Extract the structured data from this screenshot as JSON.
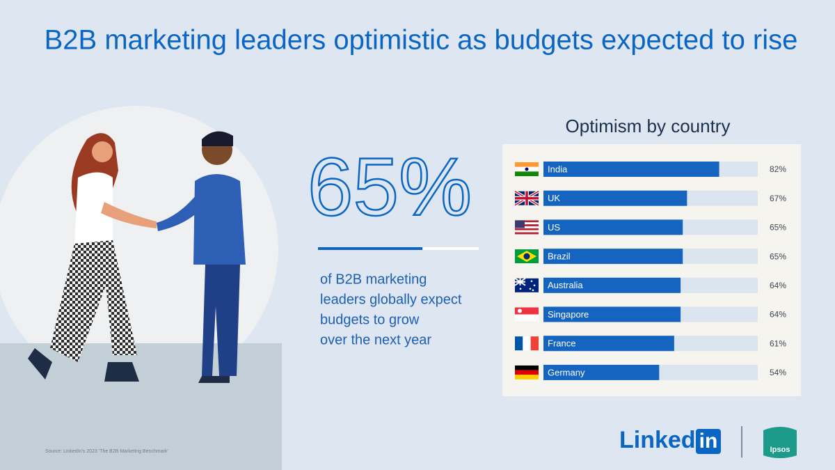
{
  "headline": "B2B marketing leaders optimistic as budgets expected to rise",
  "stat": {
    "value": 65,
    "label": "65%"
  },
  "stat_range": [
    0,
    100
  ],
  "caption": [
    "of B2B marketing",
    "leaders globally expect",
    "budgets to grow",
    "over the next year"
  ],
  "source": "Source: LinkedIn's 2023 'The B2B Marketing Benchmark'",
  "logos": {
    "linkedin_text": "Linked",
    "linkedin_box": "in",
    "ipsos": "Ipsos"
  },
  "chart_data": {
    "type": "hbar",
    "title": "Optimism by country",
    "categories": [
      "India",
      "UK",
      "US",
      "Brazil",
      "Australia",
      "Singapore",
      "France",
      "Germany"
    ],
    "values": [
      82,
      67,
      65,
      65,
      64,
      64,
      61,
      54
    ],
    "value_labels": [
      "82%",
      "67%",
      "65%",
      "65%",
      "64%",
      "64%",
      "61%",
      "54%"
    ],
    "xlim": [
      0,
      100
    ],
    "color": "#1565c0",
    "track_color": "#dbe5f0"
  }
}
